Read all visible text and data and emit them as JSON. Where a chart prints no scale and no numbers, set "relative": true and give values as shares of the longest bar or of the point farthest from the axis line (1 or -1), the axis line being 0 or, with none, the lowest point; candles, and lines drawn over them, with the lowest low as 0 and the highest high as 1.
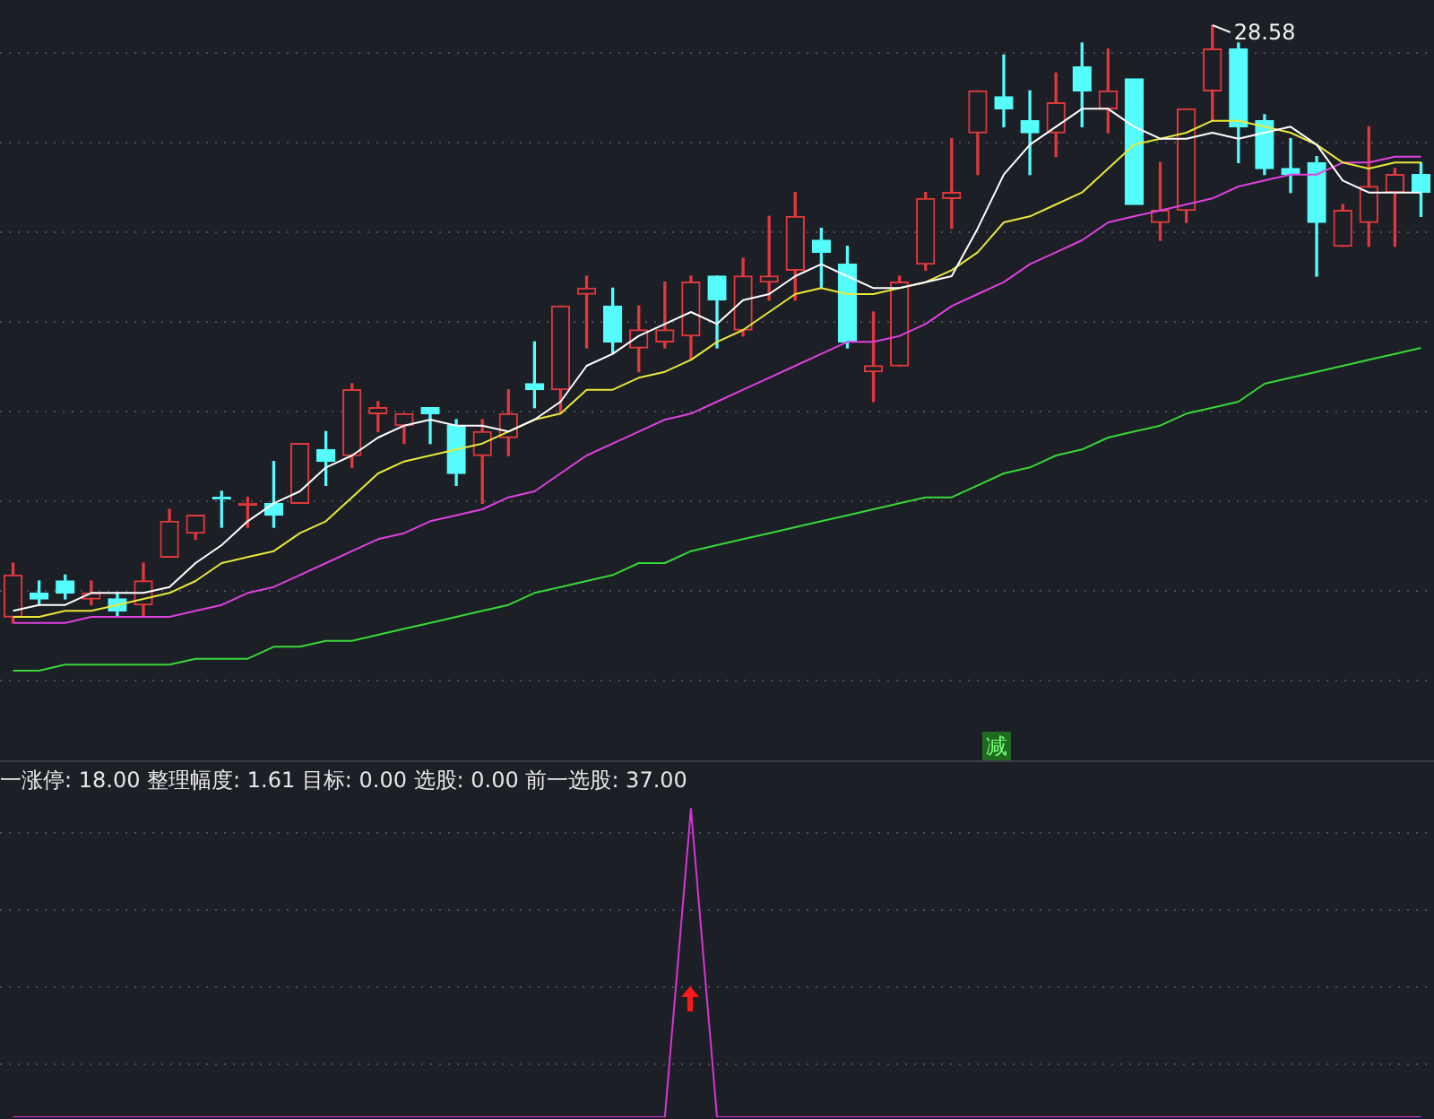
{
  "chart_data": [
    {
      "type": "candlestick",
      "relative": true,
      "grid": true,
      "categories": [
        null,
        null,
        null,
        null,
        null,
        null,
        null,
        null,
        null,
        null,
        null,
        null,
        null,
        null,
        null,
        null,
        null,
        null,
        null,
        null,
        null,
        null,
        null,
        null,
        null,
        null,
        null,
        null,
        null,
        null,
        null,
        null,
        null,
        null,
        null,
        null,
        null,
        null,
        null,
        null,
        null,
        null,
        null,
        null,
        null,
        null,
        null,
        null,
        null,
        null,
        null,
        null,
        null,
        null,
        null
      ],
      "ohlc": [
        [
          0.01,
          0.1,
          0,
          0.08
        ],
        [
          0.05,
          0.07,
          0.03,
          0.04
        ],
        [
          0.07,
          0.08,
          0.04,
          0.05
        ],
        [
          0.04,
          0.07,
          0.03,
          0.05
        ],
        [
          0.04,
          0.05,
          0.01,
          0.02
        ],
        [
          0.03,
          0.1,
          0.01,
          0.07
        ],
        [
          0.11,
          0.19,
          0.11,
          0.17
        ],
        [
          0.15,
          0.18,
          0.14,
          0.18
        ],
        [
          0.21,
          0.22,
          0.16,
          0.21
        ],
        [
          0.2,
          0.21,
          0.16,
          0.2
        ],
        [
          0.2,
          0.27,
          0.16,
          0.18
        ],
        [
          0.2,
          0.3,
          0.2,
          0.3
        ],
        [
          0.29,
          0.32,
          0.23,
          0.27
        ],
        [
          0.28,
          0.4,
          0.26,
          0.39
        ],
        [
          0.35,
          0.37,
          0.32,
          0.36
        ],
        [
          0.33,
          0.35,
          0.3,
          0.35
        ],
        [
          0.36,
          0.36,
          0.3,
          0.35
        ],
        [
          0.33,
          0.34,
          0.23,
          0.25
        ],
        [
          0.28,
          0.34,
          0.2,
          0.32
        ],
        [
          0.31,
          0.39,
          0.28,
          0.35
        ],
        [
          0.4,
          0.47,
          0.36,
          0.39
        ],
        [
          0.39,
          0.53,
          0.35,
          0.53
        ],
        [
          0.55,
          0.58,
          0.46,
          0.56
        ],
        [
          0.53,
          0.56,
          0.45,
          0.47
        ],
        [
          0.46,
          0.53,
          0.42,
          0.49
        ],
        [
          0.47,
          0.57,
          0.46,
          0.49
        ],
        [
          0.48,
          0.58,
          0.44,
          0.57
        ],
        [
          0.58,
          0.58,
          0.46,
          0.54
        ],
        [
          0.49,
          0.61,
          0.48,
          0.58
        ],
        [
          0.57,
          0.68,
          0.54,
          0.58
        ],
        [
          0.59,
          0.72,
          0.54,
          0.68
        ],
        [
          0.64,
          0.66,
          0.56,
          0.62
        ],
        [
          0.6,
          0.63,
          0.46,
          0.47
        ],
        [
          0.42,
          0.52,
          0.37,
          0.43
        ],
        [
          0.43,
          0.58,
          0.43,
          0.57
        ],
        [
          0.6,
          0.72,
          0.59,
          0.71
        ],
        [
          0.71,
          0.81,
          0.66,
          0.72
        ],
        [
          0.82,
          0.89,
          0.75,
          0.89
        ],
        [
          0.88,
          0.95,
          0.83,
          0.86
        ],
        [
          0.84,
          0.89,
          0.75,
          0.82
        ],
        [
          0.82,
          0.92,
          0.78,
          0.87
        ],
        [
          0.93,
          0.97,
          0.83,
          0.89
        ],
        [
          0.86,
          0.96,
          0.82,
          0.89
        ],
        [
          0.91,
          0.91,
          0.7,
          0.7
        ],
        [
          0.67,
          0.77,
          0.64,
          0.69
        ],
        [
          0.69,
          0.86,
          0.67,
          0.86
        ],
        [
          0.89,
          1,
          0.84,
          0.96
        ],
        [
          0.96,
          0.97,
          0.77,
          0.83
        ],
        [
          0.84,
          0.85,
          0.75,
          0.76
        ],
        [
          0.76,
          0.81,
          0.72,
          0.75
        ],
        [
          0.77,
          0.78,
          0.58,
          0.67
        ],
        [
          0.63,
          0.7,
          0.63,
          0.69
        ],
        [
          0.67,
          0.83,
          0.63,
          0.73
        ],
        [
          0.72,
          0.76,
          0.63,
          0.75
        ],
        [
          0.75,
          0.77,
          0.68,
          0.72
        ]
      ],
      "colors": [
        "#e0393c",
        "#54fcfc",
        "#54fcfc",
        "#e0393c",
        "#54fcfc",
        "#e0393c",
        "#e0393c",
        "#e0393c",
        "#54fcfc",
        "#e0393c",
        "#54fcfc",
        "#e0393c",
        "#54fcfc",
        "#e0393c",
        "#e0393c",
        "#e0393c",
        "#54fcfc",
        "#54fcfc",
        "#e0393c",
        "#e0393c",
        "#54fcfc",
        "#e0393c",
        "#e0393c",
        "#54fcfc",
        "#e0393c",
        "#e0393c",
        "#e0393c",
        "#54fcfc",
        "#e0393c",
        "#e0393c",
        "#e0393c",
        "#54fcfc",
        "#54fcfc",
        "#e0393c",
        "#e0393c",
        "#e0393c",
        "#e0393c",
        "#e0393c",
        "#54fcfc",
        "#54fcfc",
        "#e0393c",
        "#54fcfc",
        "#e0393c",
        "#54fcfc",
        "#e0393c",
        "#e0393c",
        "#e0393c",
        "#54fcfc",
        "#54fcfc",
        "#54fcfc",
        "#54fcfc",
        "#e0393c",
        "#e0393c",
        "#e0393c",
        "#54fcfc"
      ],
      "series": [
        {
          "type": "line",
          "color": "#ffffff",
          "values": [
            0.02,
            0.03,
            0.03,
            0.05,
            0.05,
            0.05,
            0.06,
            0.1,
            0.13,
            0.17,
            0.2,
            0.22,
            0.26,
            0.28,
            0.31,
            0.33,
            0.34,
            0.33,
            0.33,
            0.32,
            0.34,
            0.37,
            0.43,
            0.45,
            0.48,
            0.5,
            0.52,
            0.5,
            0.54,
            0.55,
            0.58,
            0.6,
            0.58,
            0.56,
            0.56,
            0.57,
            0.58,
            0.66,
            0.75,
            0.8,
            0.83,
            0.86,
            0.86,
            0.83,
            0.81,
            0.81,
            0.82,
            0.81,
            0.82,
            0.83,
            0.8,
            0.74,
            0.72,
            0.72,
            0.72
          ]
        },
        {
          "type": "line",
          "color": "#e8e83a",
          "values": [
            0.01,
            0.01,
            0.02,
            0.02,
            0.03,
            0.04,
            0.05,
            0.07,
            0.1,
            0.11,
            0.12,
            0.15,
            0.17,
            0.21,
            0.25,
            0.27,
            0.28,
            0.29,
            0.3,
            0.32,
            0.34,
            0.35,
            0.39,
            0.39,
            0.41,
            0.42,
            0.44,
            0.47,
            0.49,
            0.52,
            0.55,
            0.56,
            0.55,
            0.55,
            0.56,
            0.57,
            0.59,
            0.62,
            0.67,
            0.68,
            0.7,
            0.72,
            0.76,
            0.8,
            0.81,
            0.82,
            0.84,
            0.84,
            0.83,
            0.82,
            0.8,
            0.77,
            0.76,
            0.77,
            0.77
          ]
        },
        {
          "type": "line",
          "color": "#e040e0",
          "values": [
            0,
            0,
            0,
            0.01,
            0.01,
            0.01,
            0.01,
            0.02,
            0.03,
            0.05,
            0.06,
            0.08,
            0.1,
            0.12,
            0.14,
            0.15,
            0.17,
            0.18,
            0.19,
            0.21,
            0.22,
            0.25,
            0.28,
            0.3,
            0.32,
            0.34,
            0.35,
            0.37,
            0.39,
            0.41,
            0.43,
            0.45,
            0.47,
            0.47,
            0.48,
            0.5,
            0.53,
            0.55,
            0.57,
            0.6,
            0.62,
            0.64,
            0.67,
            0.68,
            0.69,
            0.7,
            0.71,
            0.73,
            0.74,
            0.75,
            0.75,
            0.77,
            0.77,
            0.78,
            0.78
          ]
        },
        {
          "type": "line",
          "color": "#38d838",
          "values": [
            -0.08,
            -0.08,
            -0.07,
            -0.07,
            -0.07,
            -0.07,
            -0.07,
            -0.06,
            -0.06,
            -0.06,
            -0.04,
            -0.04,
            -0.03,
            -0.03,
            -0.02,
            -0.01,
            0,
            0.01,
            0.02,
            0.03,
            0.05,
            0.06,
            0.07,
            0.08,
            0.1,
            0.1,
            0.12,
            0.13,
            0.14,
            0.15,
            0.16,
            0.17,
            0.18,
            0.19,
            0.2,
            0.21,
            0.21,
            0.23,
            0.25,
            0.26,
            0.28,
            0.29,
            0.31,
            0.32,
            0.33,
            0.35,
            0.36,
            0.37,
            0.4,
            0.41,
            0.42,
            0.43,
            0.44,
            0.45,
            0.46
          ]
        }
      ],
      "annotations": [
        "28.58",
        "减"
      ]
    },
    {
      "type": "line",
      "relative": true,
      "grid": true,
      "title": "一涨停: 18.00 整理幅度: 1.61 目标: 0.00 选股: 0.00 前一选股: 37.00",
      "categories": [
        null,
        null,
        null,
        null,
        null,
        null,
        null,
        null,
        null,
        null,
        null,
        null,
        null,
        null,
        null,
        null,
        null,
        null,
        null,
        null,
        null,
        null,
        null,
        null,
        null,
        null,
        null,
        null,
        null,
        null,
        null,
        null,
        null,
        null,
        null,
        null,
        null,
        null,
        null,
        null,
        null,
        null,
        null,
        null,
        null,
        null,
        null,
        null,
        null,
        null,
        null,
        null,
        null,
        null,
        null
      ],
      "series": [
        {
          "color": "#d636d6",
          "values": [
            0,
            0,
            0,
            0,
            0,
            0,
            0,
            0,
            0,
            0,
            0,
            0,
            0,
            0,
            0,
            0,
            0,
            0,
            0,
            0,
            0,
            0,
            0,
            0,
            0,
            0,
            1,
            0,
            0,
            0,
            0,
            0,
            0,
            0,
            0,
            0,
            0,
            0,
            0,
            0,
            0,
            0,
            0,
            0,
            0,
            0,
            0,
            0,
            0,
            0,
            0,
            0,
            0,
            0,
            0
          ]
        }
      ]
    }
  ]
}
